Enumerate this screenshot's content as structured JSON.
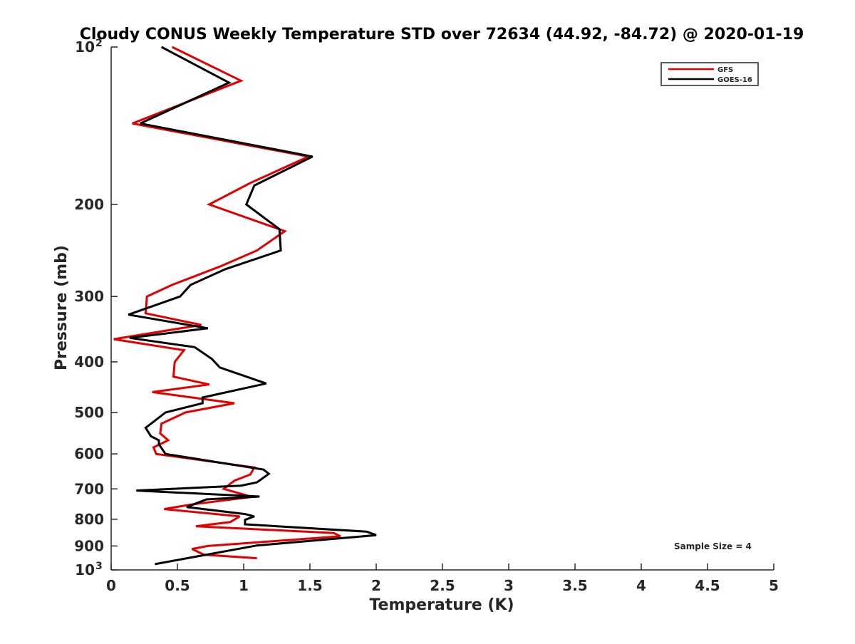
{
  "chart_data": {
    "type": "line",
    "title": "Cloudy CONUS Weekly Temperature STD over 72634 (44.92, -84.72) @ 2020-01-19",
    "xlabel": "Temperature (K)",
    "ylabel": "Pressure (mb)",
    "xlim": [
      0,
      5
    ],
    "ylim": [
      100,
      1000
    ],
    "y_scale": "log",
    "y_reversed": true,
    "grid": false,
    "legend_position": "top-right",
    "annotation": "Sample Size = 4",
    "x_ticks": [
      "0",
      "0.5",
      "1",
      "1.5",
      "2",
      "2.5",
      "3",
      "3.5",
      "4",
      "4.5",
      "5"
    ],
    "x_tick_values": [
      0,
      0.5,
      1,
      1.5,
      2,
      2.5,
      3,
      3.5,
      4,
      4.5,
      5
    ],
    "y_ticks": [
      {
        "value": 100,
        "base": "10",
        "exp": "2"
      },
      {
        "value": 200,
        "label": "200"
      },
      {
        "value": 300,
        "label": "300"
      },
      {
        "value": 400,
        "label": "400"
      },
      {
        "value": 500,
        "label": "500"
      },
      {
        "value": 600,
        "label": "600"
      },
      {
        "value": 700,
        "label": "700"
      },
      {
        "value": 800,
        "label": "800"
      },
      {
        "value": 900,
        "label": "900"
      },
      {
        "value": 1000,
        "base": "10",
        "exp": "3"
      }
    ],
    "series": [
      {
        "name": "GFS",
        "color": "#e00000",
        "points": [
          {
            "x": 0.46,
            "p": 100
          },
          {
            "x": 0.98,
            "p": 116
          },
          {
            "x": 0.16,
            "p": 140
          },
          {
            "x": 1.49,
            "p": 162
          },
          {
            "x": 1.05,
            "p": 182
          },
          {
            "x": 0.74,
            "p": 200
          },
          {
            "x": 1.31,
            "p": 225
          },
          {
            "x": 1.1,
            "p": 245
          },
          {
            "x": 0.82,
            "p": 263
          },
          {
            "x": 0.46,
            "p": 285
          },
          {
            "x": 0.27,
            "p": 300
          },
          {
            "x": 0.26,
            "p": 323
          },
          {
            "x": 0.68,
            "p": 340
          },
          {
            "x": 0.02,
            "p": 362
          },
          {
            "x": 0.55,
            "p": 380
          },
          {
            "x": 0.48,
            "p": 400
          },
          {
            "x": 0.47,
            "p": 427
          },
          {
            "x": 0.74,
            "p": 442
          },
          {
            "x": 0.31,
            "p": 457
          },
          {
            "x": 0.93,
            "p": 480
          },
          {
            "x": 0.56,
            "p": 500
          },
          {
            "x": 0.38,
            "p": 525
          },
          {
            "x": 0.37,
            "p": 548
          },
          {
            "x": 0.43,
            "p": 565
          },
          {
            "x": 0.32,
            "p": 583
          },
          {
            "x": 0.34,
            "p": 600
          },
          {
            "x": 1.08,
            "p": 637
          },
          {
            "x": 1.05,
            "p": 657
          },
          {
            "x": 0.93,
            "p": 675
          },
          {
            "x": 0.85,
            "p": 700
          },
          {
            "x": 1.06,
            "p": 725
          },
          {
            "x": 0.6,
            "p": 750
          },
          {
            "x": 0.4,
            "p": 765
          },
          {
            "x": 0.97,
            "p": 790
          },
          {
            "x": 0.9,
            "p": 810
          },
          {
            "x": 0.64,
            "p": 825
          },
          {
            "x": 1.68,
            "p": 850
          },
          {
            "x": 1.73,
            "p": 862
          },
          {
            "x": 0.73,
            "p": 900
          },
          {
            "x": 0.61,
            "p": 912
          },
          {
            "x": 0.7,
            "p": 935
          },
          {
            "x": 1.1,
            "p": 950
          }
        ]
      },
      {
        "name": "GOES-16",
        "color": "#000000",
        "points": [
          {
            "x": 0.38,
            "p": 100
          },
          {
            "x": 0.89,
            "p": 117
          },
          {
            "x": 0.22,
            "p": 140
          },
          {
            "x": 1.52,
            "p": 162
          },
          {
            "x": 1.08,
            "p": 184
          },
          {
            "x": 1.02,
            "p": 200
          },
          {
            "x": 1.27,
            "p": 223
          },
          {
            "x": 1.28,
            "p": 245
          },
          {
            "x": 0.86,
            "p": 266
          },
          {
            "x": 0.6,
            "p": 285
          },
          {
            "x": 0.52,
            "p": 300
          },
          {
            "x": 0.13,
            "p": 325
          },
          {
            "x": 0.73,
            "p": 345
          },
          {
            "x": 0.14,
            "p": 360
          },
          {
            "x": 0.63,
            "p": 375
          },
          {
            "x": 0.76,
            "p": 395
          },
          {
            "x": 0.82,
            "p": 410
          },
          {
            "x": 1.17,
            "p": 440
          },
          {
            "x": 0.69,
            "p": 468
          },
          {
            "x": 0.69,
            "p": 480
          },
          {
            "x": 0.41,
            "p": 500
          },
          {
            "x": 0.26,
            "p": 535
          },
          {
            "x": 0.3,
            "p": 555
          },
          {
            "x": 0.36,
            "p": 565
          },
          {
            "x": 0.36,
            "p": 575
          },
          {
            "x": 0.41,
            "p": 600
          },
          {
            "x": 1.15,
            "p": 643
          },
          {
            "x": 1.19,
            "p": 655
          },
          {
            "x": 1.1,
            "p": 680
          },
          {
            "x": 0.98,
            "p": 690
          },
          {
            "x": 0.19,
            "p": 705
          },
          {
            "x": 1.12,
            "p": 724
          },
          {
            "x": 0.72,
            "p": 733
          },
          {
            "x": 0.57,
            "p": 758
          },
          {
            "x": 1.01,
            "p": 782
          },
          {
            "x": 1.08,
            "p": 790
          },
          {
            "x": 1.01,
            "p": 802
          },
          {
            "x": 1.01,
            "p": 818
          },
          {
            "x": 1.93,
            "p": 845
          },
          {
            "x": 2.0,
            "p": 858
          },
          {
            "x": 1.1,
            "p": 898
          },
          {
            "x": 0.33,
            "p": 975
          }
        ]
      }
    ]
  }
}
